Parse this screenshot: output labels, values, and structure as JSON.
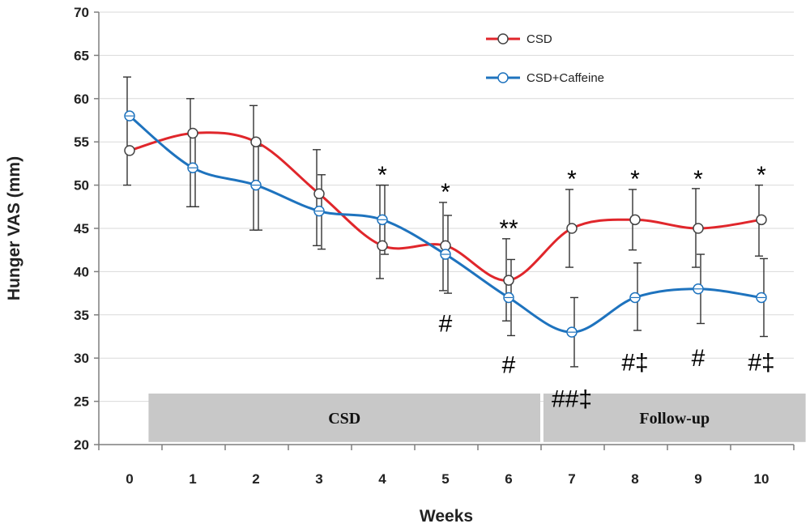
{
  "chart_data": {
    "type": "line",
    "title": "",
    "xlabel": "Weeks",
    "ylabel": "Hunger VAS (mm)",
    "ylim": [
      20,
      70
    ],
    "yticks": [
      20,
      25,
      30,
      35,
      40,
      45,
      50,
      55,
      60,
      65,
      70
    ],
    "x": [
      0,
      1,
      2,
      3,
      4,
      5,
      6,
      7,
      8,
      9,
      10
    ],
    "grid": true,
    "legend_position": "top-right",
    "series": [
      {
        "name": "CSD",
        "color": "#e0262b",
        "values": [
          54,
          56,
          55,
          49,
          43,
          43,
          39,
          45,
          46,
          45,
          46
        ],
        "err_upper": [
          62.5,
          60,
          59.2,
          54.1,
          50,
          48,
          43.8,
          49.5,
          49.5,
          49.6,
          50
        ],
        "err_lower": [
          50,
          47.5,
          44.8,
          43,
          39.2,
          37.8,
          34.3,
          40.5,
          42.5,
          40.5,
          41.8
        ]
      },
      {
        "name": "CSD+Caffeine",
        "color": "#1e73be",
        "values": [
          58,
          52,
          50,
          47,
          46,
          42,
          37,
          33,
          37,
          38,
          37
        ],
        "err_upper": [
          58,
          56,
          54.5,
          51.2,
          50,
          46.5,
          41.4,
          37,
          41,
          42,
          41.5
        ],
        "err_lower": [
          58,
          47.5,
          44.8,
          42.6,
          42,
          37.5,
          32.6,
          29,
          33.2,
          34,
          32.5
        ]
      }
    ],
    "phases": [
      {
        "label": "CSD",
        "from": 0.3,
        "to": 6.5
      },
      {
        "label": "Follow-up",
        "from": 6.55,
        "to": 10.7
      }
    ],
    "annotations": [
      {
        "x": 4,
        "y": 51.2,
        "text": "*"
      },
      {
        "x": 5,
        "y": 49.2,
        "text": "*"
      },
      {
        "x": 6,
        "y": 45.0,
        "text": "**"
      },
      {
        "x": 7,
        "y": 50.7,
        "text": "*"
      },
      {
        "x": 8,
        "y": 50.7,
        "text": "*"
      },
      {
        "x": 9,
        "y": 50.7,
        "text": "*"
      },
      {
        "x": 10,
        "y": 51.2,
        "text": "*"
      },
      {
        "x": 5,
        "y": 34.0,
        "text": "#"
      },
      {
        "x": 6,
        "y": 29.2,
        "text": "#"
      },
      {
        "x": 7,
        "y": 25.3,
        "text": "##‡"
      },
      {
        "x": 8,
        "y": 29.5,
        "text": "#‡"
      },
      {
        "x": 9,
        "y": 30.0,
        "text": "#"
      },
      {
        "x": 10,
        "y": 29.5,
        "text": "#‡"
      }
    ]
  }
}
